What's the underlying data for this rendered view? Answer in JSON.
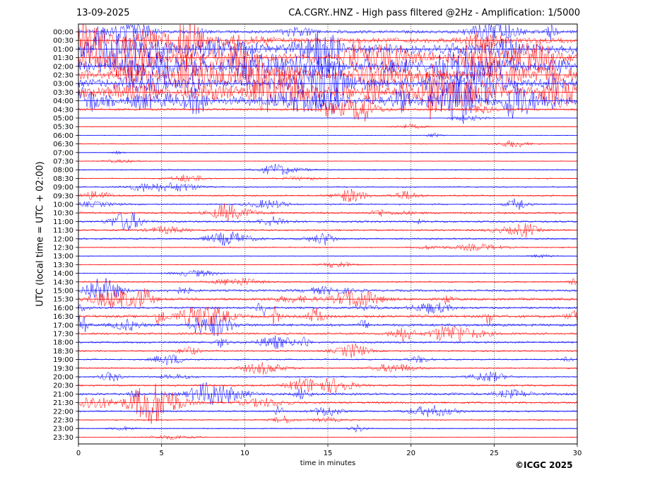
{
  "header": {
    "date": "13-09-2025",
    "title": "CA.CGRY..HNZ - High pass filtered @2Hz - Amplification: 1/5000"
  },
  "footer": {
    "copyright": "©ICGC 2025"
  },
  "chart_data": {
    "type": "line",
    "title": "CA.CGRY..HNZ - High pass filtered @2Hz - Amplification: 1/5000",
    "xlabel": "time in minutes",
    "ylabel": "UTC (local time = UTC + 02:00)",
    "xlim": [
      0,
      30
    ],
    "x_ticks": [
      0,
      5,
      10,
      15,
      20,
      25,
      30
    ],
    "y_ticks": [
      "00:00",
      "00:30",
      "01:00",
      "01:30",
      "02:00",
      "02:30",
      "03:00",
      "03:30",
      "04:00",
      "04:30",
      "05:00",
      "05:30",
      "06:00",
      "06:30",
      "07:00",
      "07:30",
      "08:00",
      "08:30",
      "09:00",
      "09:30",
      "10:00",
      "10:30",
      "11:00",
      "11:30",
      "12:00",
      "12:30",
      "13:00",
      "13:30",
      "14:00",
      "14:30",
      "15:00",
      "15:30",
      "16:00",
      "16:30",
      "17:00",
      "17:30",
      "18:00",
      "18:30",
      "19:00",
      "19:30",
      "20:00",
      "20:30",
      "21:00",
      "21:30",
      "22:00",
      "22:30",
      "23:00",
      "23:30"
    ],
    "trace_colors": [
      "#0000ff",
      "#ff0000"
    ],
    "vertical_grid": true,
    "trace_activity": [
      2,
      3,
      5,
      5,
      5,
      5,
      5,
      5,
      5,
      1.5,
      0.3,
      0.3,
      0.3,
      0.4,
      0.3,
      0.4,
      0.6,
      0.6,
      0.7,
      0.9,
      0.9,
      1.2,
      1.4,
      1.1,
      1.0,
      0.7,
      0.3,
      0.4,
      0.4,
      0.8,
      1.4,
      1.6,
      1.4,
      1.9,
      1.7,
      1.4,
      1.2,
      1.0,
      0.9,
      0.8,
      0.9,
      1.1,
      1.6,
      1.5,
      1.0,
      0.8,
      0.5,
      0.3
    ]
  }
}
